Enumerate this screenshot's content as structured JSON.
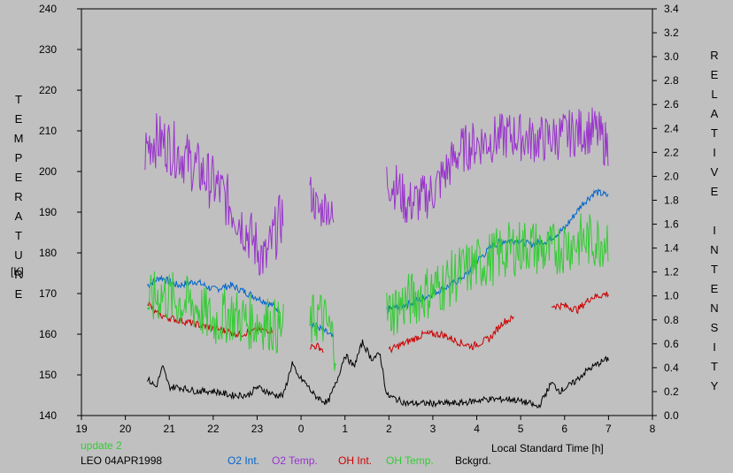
{
  "chart_data": {
    "type": "line",
    "xlabel": "Local Standard Time [h]",
    "x_ticks": [
      "19",
      "20",
      "21",
      "22",
      "23",
      "0",
      "1",
      "2",
      "3",
      "4",
      "5",
      "6",
      "7",
      "8"
    ],
    "x_range": [
      19,
      32
    ],
    "ylabel_left": "TEMPERATURE",
    "ylabel_left_unit": "[K]",
    "ylabel_right": "RELATIVE INTENSITY",
    "ylim_left": [
      140,
      240
    ],
    "ylim_right": [
      0,
      3.4
    ],
    "y_ticks_left": [
      "140",
      "150",
      "160",
      "170",
      "180",
      "190",
      "200",
      "210",
      "220",
      "230",
      "240"
    ],
    "y_ticks_right": [
      "0.0",
      "0.2",
      "0.4",
      "0.6",
      "0.8",
      "1.0",
      "1.2",
      "1.4",
      "1.6",
      "1.8",
      "2.0",
      "2.2",
      "2.4",
      "2.6",
      "2.8",
      "3.0",
      "3.2",
      "3.4"
    ],
    "grid": false,
    "legend_position": "bottom",
    "note_update": "update 2",
    "note_station": "LEO 04APR1998",
    "colors": {
      "o2_int": "#0066cc",
      "o2_temp": "#9933cc",
      "oh_int": "#cc0000",
      "oh_temp": "#33cc33",
      "bckgrd": "#000000",
      "update_note": "#33cc33"
    },
    "series": [
      {
        "name": "O2 Int.",
        "axis": "left",
        "color": "#0066cc",
        "segments": [
          {
            "x": [
              20.5,
              20.8,
              21.2,
              21.6,
              22.0,
              22.4,
              22.8,
              23.2,
              23.5
            ],
            "y": [
              172,
              174,
              172,
              173,
              171,
              172,
              170,
              168,
              166
            ]
          },
          {
            "x": [
              24.2,
              24.5,
              24.75
            ],
            "y": [
              163,
              161,
              159
            ]
          },
          {
            "x": [
              25.95,
              26.3,
              26.6,
              27.0,
              27.4,
              27.8,
              28.0,
              28.4,
              28.6,
              29.0,
              29.2,
              29.6,
              30.0,
              30.4,
              30.7,
              31.0
            ],
            "y": [
              166,
              167,
              168,
              170,
              172,
              175,
              178,
              182,
              183,
              183,
              182,
              183,
              186,
              192,
              195,
              194
            ]
          }
        ]
      },
      {
        "name": "O2 Temp.",
        "axis": "left",
        "color": "#9933cc",
        "segments": [
          {
            "x": [
              20.45,
              20.6,
              20.9,
              21.3,
              21.7,
              22.1,
              22.5,
              22.9,
              23.2,
              23.35,
              23.6
            ],
            "y": [
              205,
              208,
              207,
              204,
              200,
              196,
              190,
              183,
              178,
              183,
              190
            ],
            "jitter": 7
          },
          {
            "x": [
              24.2,
              24.4,
              24.6,
              24.75
            ],
            "y": [
              195,
              190,
              192,
              187
            ],
            "jitter": 5
          },
          {
            "x": [
              25.95,
              26.2,
              26.4,
              26.7,
              27.0,
              27.3,
              27.6,
              28.0,
              28.4,
              28.8,
              29.2,
              29.6,
              30.0,
              30.4,
              30.7,
              31.0
            ],
            "y": [
              198,
              196,
              192,
              193,
              195,
              200,
              205,
              207,
              208,
              209,
              208,
              208,
              209,
              210,
              210,
              206
            ],
            "jitter": 6
          }
        ]
      },
      {
        "name": "OH Int.",
        "axis": "left",
        "color": "#cc0000",
        "segments": [
          {
            "x": [
              20.5,
              20.7,
              21.0,
              21.4,
              21.8,
              22.2,
              22.6,
              23.0,
              23.35
            ],
            "y": [
              168,
              165,
              164,
              163,
              162,
              161,
              160,
              161,
              161
            ]
          },
          {
            "x": [
              24.2,
              24.4,
              24.5
            ],
            "y": [
              157,
              157,
              156
            ]
          },
          {
            "x": [
              26.0,
              26.4,
              26.8,
              27.2,
              27.6,
              27.9,
              28.3,
              28.6,
              28.85
            ],
            "y": [
              156,
              158,
              160,
              160,
              158,
              157,
              159,
              163,
              164
            ]
          },
          {
            "x": [
              29.7,
              30.0,
              30.3,
              30.6,
              31.0
            ],
            "y": [
              167,
              167,
              166,
              169,
              170
            ]
          }
        ]
      },
      {
        "name": "OH Temp.",
        "axis": "left",
        "color": "#33cc33",
        "segments": [
          {
            "x": [
              20.5,
              20.8,
              21.2,
              21.6,
              22.0,
              22.4,
              22.8,
              23.2,
              23.6
            ],
            "y": [
              167,
              170,
              168,
              167,
              163,
              165,
              163,
              163,
              161
            ],
            "jitter": 7
          },
          {
            "x": [
              24.2,
              24.4,
              24.6,
              24.8
            ],
            "y": [
              162,
              165,
              162,
              157
            ],
            "jitter": 7
          },
          {
            "x": [
              25.95,
              26.4,
              26.8,
              27.2,
              27.6,
              28.0,
              28.4,
              28.8,
              29.2,
              29.6,
              30.0,
              30.4,
              30.8,
              31.0
            ],
            "y": [
              165,
              168,
              170,
              172,
              175,
              177,
              179,
              181,
              182,
              180,
              182,
              183,
              183,
              184
            ],
            "jitter": 7
          }
        ]
      },
      {
        "name": "Bckgrd.",
        "axis": "left",
        "color": "#000000",
        "segments": [
          {
            "x": [
              20.5,
              20.7,
              20.85,
              21.0,
              21.2,
              21.6,
              22.0,
              22.4,
              22.8,
              23.0,
              23.4,
              23.6,
              23.8,
              23.9,
              24.1,
              24.3,
              24.6,
              24.8,
              25.0,
              25.2,
              25.4,
              25.6,
              25.8,
              25.95,
              26.4,
              27.0,
              27.6,
              28.2,
              28.8,
              29.2,
              29.4,
              29.7,
              29.9,
              30.2,
              30.5,
              30.8,
              31.0
            ],
            "y": [
              149,
              147,
              152,
              147,
              147,
              146,
              146,
              145,
              145,
              147,
              145,
              145,
              153,
              150,
              148,
              145,
              143,
              148,
              155,
              152,
              158,
              154,
              155,
              145,
              143,
              143,
              143,
              144,
              144,
              143,
              142,
              148,
              146,
              148,
              151,
              153,
              154
            ]
          }
        ]
      }
    ]
  }
}
